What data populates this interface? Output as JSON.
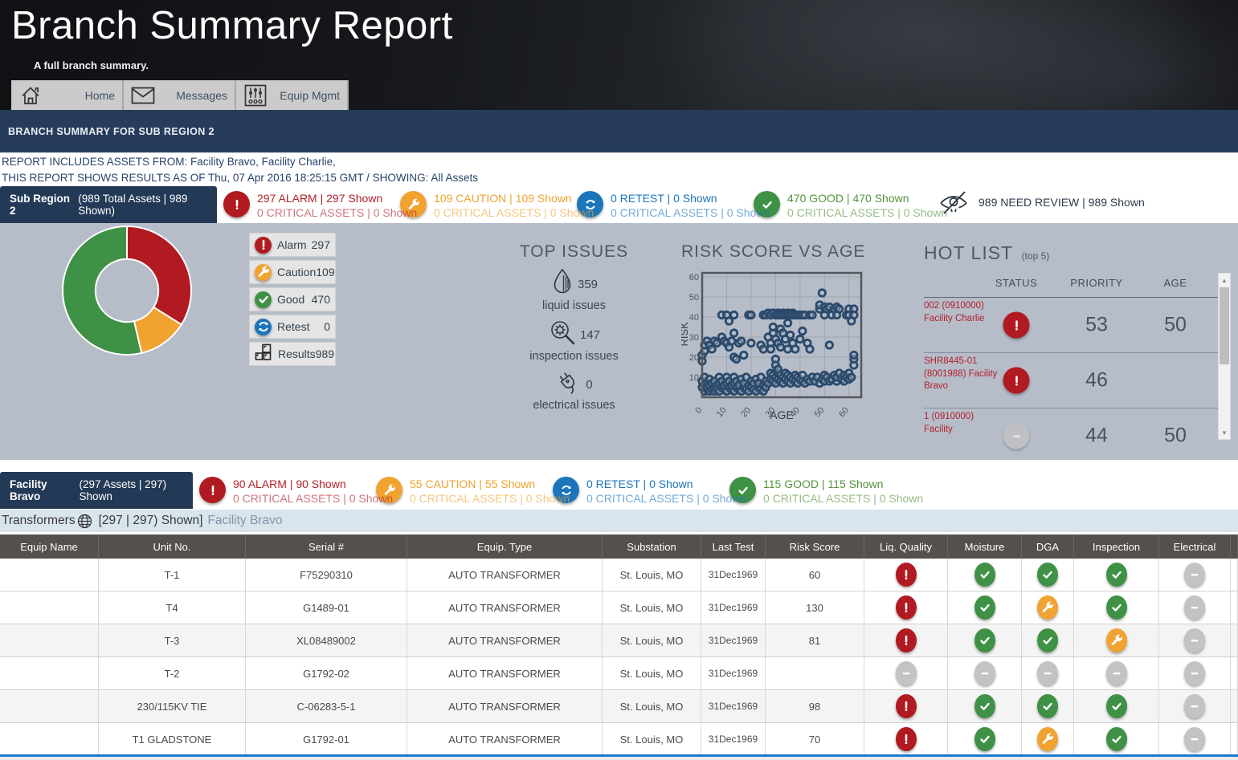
{
  "header": {
    "title": "Branch Summary Report",
    "subtitle": "A full branch summary.",
    "nav": [
      {
        "label": "Home",
        "icon": "home-icon"
      },
      {
        "label": "Messages",
        "icon": "envelope-icon"
      },
      {
        "label": "Equip Mgmt",
        "icon": "sliders-icon"
      }
    ]
  },
  "banner": {
    "text": "BRANCH SUMMARY FOR SUB REGION 2"
  },
  "report_info": {
    "line1": "REPORT INCLUDES ASSETS FROM: Facility Bravo, Facility Charlie,",
    "line2": "THIS REPORT SHOWS RESULTS AS OF Thu, 07 Apr 2016 18:25:15 GMT / SHOWING: All Assets"
  },
  "region_summary": {
    "tab_bold": "Sub Region 2",
    "tab_rest": "(989 Total Assets | 989 Shown)",
    "badges": [
      {
        "type": "alarm",
        "line1": "297 ALARM | 297 Shown",
        "line2": "0 CRITICAL ASSETS | 0 Shown"
      },
      {
        "type": "caution",
        "line1": "109 CAUTION | 109 Shown",
        "line2": "0 CRITICAL ASSETS | 0 Shown"
      },
      {
        "type": "retest",
        "line1": "0 RETEST | 0 Shown",
        "line2": "0 CRITICAL ASSETS | 0 Shown"
      },
      {
        "type": "good",
        "line1": "470 GOOD | 470 Shown",
        "line2": "0 CRITICAL ASSETS | 0 Shown"
      }
    ],
    "need_review": {
      "text": "989 NEED REVIEW | 989 Shown"
    }
  },
  "legend": [
    {
      "type": "alarm",
      "label": "Alarm",
      "value": "297"
    },
    {
      "type": "caution",
      "label": "Caution",
      "value": "109"
    },
    {
      "type": "good",
      "label": "Good",
      "value": "470"
    },
    {
      "type": "retest",
      "label": "Retest",
      "value": "0"
    },
    {
      "type": "results",
      "label": "Results",
      "value": "989"
    }
  ],
  "top_issues": {
    "title": "TOP ISSUES",
    "items": [
      {
        "icon": "droplet-icon",
        "value": "359",
        "label": "liquid issues"
      },
      {
        "icon": "inspection-icon",
        "value": "147",
        "label": "inspection issues"
      },
      {
        "icon": "plug-icon",
        "value": "0",
        "label": "electrical issues"
      }
    ]
  },
  "hot_list": {
    "title": "HOT LIST",
    "subtitle": "(top 5)",
    "columns": [
      "STATUS",
      "PRIORITY",
      "AGE"
    ],
    "rows": [
      {
        "name": "002 (0910000) Facility Charlie",
        "status": "alarm",
        "priority": "53",
        "age": "50"
      },
      {
        "name": "SHR8445-01 (8001988) Facility Bravo",
        "status": "alarm",
        "priority": "46",
        "age": ""
      },
      {
        "name": "1 (0910000) Facility",
        "status": "na",
        "priority": "44",
        "age": "50"
      }
    ]
  },
  "facility_summary": {
    "tab_bold": "Facility Bravo",
    "tab_rest": "(297 Assets | 297) Shown",
    "badges": [
      {
        "type": "alarm",
        "line1": "90 ALARM | 90 Shown",
        "line2": "0 CRITICAL ASSETS | 0 Shown"
      },
      {
        "type": "caution",
        "line1": "55 CAUTION | 55 Shown",
        "line2": "0 CRITICAL ASSETS | 0 Shown"
      },
      {
        "type": "retest",
        "line1": "0 RETEST | 0 Shown",
        "line2": "0 CRITICAL ASSETS | 0 Shown"
      },
      {
        "type": "good",
        "line1": "115 GOOD | 115 Shown",
        "line2": "0 CRITICAL ASSETS | 0 Shown"
      }
    ]
  },
  "table_bar": {
    "title": "Transformers",
    "count": "[297 | 297) Shown]",
    "facility": "Facility Bravo"
  },
  "table": {
    "columns": [
      "Equip Name",
      "Unit No.",
      "Serial #",
      "Equip. Type",
      "Substation",
      "Last Test",
      "Risk Score",
      "Liq. Quality",
      "Moisture",
      "DGA",
      "Inspection",
      "Electrical"
    ],
    "rows": [
      {
        "equip_name": "",
        "unit_no": "T-1",
        "serial": "F75290310",
        "equip_type": "AUTO TRANSFORMER",
        "substation": "St. Louis, MO",
        "last_test": "31Dec1969",
        "risk_score": "60",
        "liq_quality": "alarm",
        "moisture": "good",
        "dga": "good",
        "inspection": "good",
        "electrical": "na"
      },
      {
        "equip_name": "",
        "unit_no": "T4",
        "serial": "G1489-01",
        "equip_type": "AUTO TRANSFORMER",
        "substation": "St. Louis, MO",
        "last_test": "31Dec1969",
        "risk_score": "130",
        "liq_quality": "alarm",
        "moisture": "good",
        "dga": "caution",
        "inspection": "good",
        "electrical": "na"
      },
      {
        "equip_name": "",
        "unit_no": "T-3",
        "serial": "XL08489002",
        "equip_type": "AUTO TRANSFORMER",
        "substation": "St. Louis, MO",
        "last_test": "31Dec1969",
        "risk_score": "81",
        "liq_quality": "alarm",
        "moisture": "good",
        "dga": "good",
        "inspection": "caution",
        "electrical": "na"
      },
      {
        "equip_name": "",
        "unit_no": "T-2",
        "serial": "G1792-02",
        "equip_type": "AUTO TRANSFORMER",
        "substation": "St. Louis, MO",
        "last_test": "31Dec1969",
        "risk_score": "",
        "liq_quality": "na",
        "moisture": "na",
        "dga": "na",
        "inspection": "na",
        "electrical": "na"
      },
      {
        "equip_name": "",
        "unit_no": "230/115KV TIE",
        "serial": "C-06283-5-1",
        "equip_type": "AUTO TRANSFORMER",
        "substation": "St. Louis, MO",
        "last_test": "31Dec1969",
        "risk_score": "98",
        "liq_quality": "alarm",
        "moisture": "good",
        "dga": "good",
        "inspection": "good",
        "electrical": "na"
      },
      {
        "equip_name": "",
        "unit_no": "T1 GLADSTONE",
        "serial": "G1792-01",
        "equip_type": "AUTO TRANSFORMER",
        "substation": "St. Louis, MO",
        "last_test": "31Dec1969",
        "risk_score": "70",
        "liq_quality": "alarm",
        "moisture": "good",
        "dga": "caution",
        "inspection": "good",
        "electrical": "na"
      }
    ]
  },
  "colors": {
    "alarm": "#b11a21",
    "caution": "#f0a330",
    "good": "#3f9145",
    "retest": "#1b75bb",
    "na": "#c3c3c3",
    "navy": "#233a57",
    "panel": "#b6bdc9",
    "point": "#2b4a6c"
  },
  "chart_data": [
    {
      "type": "pie",
      "title": "Asset status donut",
      "labels": [
        "Alarm",
        "Caution",
        "Good",
        "Retest"
      ],
      "values": [
        297,
        109,
        470,
        0
      ],
      "colors": [
        "#b11a21",
        "#f0a330",
        "#3f9145",
        "#1b75bb"
      ],
      "hole": 0.49,
      "start_angle": 0,
      "direction": "clockwise"
    },
    {
      "type": "scatter",
      "title": "RISK SCORE VS AGE",
      "xlabel": "AGE",
      "ylabel": "RISK",
      "xlim": [
        0,
        65
      ],
      "ylim": [
        0,
        62
      ],
      "xticks": [
        0,
        10,
        20,
        30,
        40,
        50,
        60
      ],
      "yticks": [
        10,
        20,
        30,
        40,
        50,
        60
      ],
      "grid": true,
      "points": [
        [
          0,
          5
        ],
        [
          0,
          8
        ],
        [
          1,
          3
        ],
        [
          1,
          6
        ],
        [
          1,
          10
        ],
        [
          2,
          4
        ],
        [
          2,
          7
        ],
        [
          2,
          5
        ],
        [
          3,
          3
        ],
        [
          3,
          6
        ],
        [
          3,
          9
        ],
        [
          4,
          4
        ],
        [
          4,
          7
        ],
        [
          5,
          5
        ],
        [
          5,
          3
        ],
        [
          5,
          8
        ],
        [
          6,
          6
        ],
        [
          6,
          4
        ],
        [
          7,
          7
        ],
        [
          7,
          3
        ],
        [
          7,
          10
        ],
        [
          8,
          5
        ],
        [
          8,
          8
        ],
        [
          9,
          4
        ],
        [
          9,
          6
        ],
        [
          10,
          3
        ],
        [
          10,
          7
        ],
        [
          10,
          10
        ],
        [
          11,
          5
        ],
        [
          11,
          8
        ],
        [
          12,
          4
        ],
        [
          12,
          6
        ],
        [
          13,
          3
        ],
        [
          13,
          7
        ],
        [
          13,
          10
        ],
        [
          14,
          5
        ],
        [
          14,
          8
        ],
        [
          15,
          4
        ],
        [
          15,
          6
        ],
        [
          16,
          3
        ],
        [
          16,
          9
        ],
        [
          17,
          5
        ],
        [
          17,
          7
        ],
        [
          18,
          4
        ],
        [
          18,
          10
        ],
        [
          19,
          6
        ],
        [
          19,
          3
        ],
        [
          20,
          8
        ],
        [
          20,
          5
        ],
        [
          21,
          4
        ],
        [
          21,
          7
        ],
        [
          22,
          3
        ],
        [
          22,
          9
        ],
        [
          23,
          5
        ],
        [
          23,
          7
        ],
        [
          24,
          4
        ],
        [
          24,
          10
        ],
        [
          25,
          6
        ],
        [
          25,
          3
        ],
        [
          26,
          8
        ],
        [
          26,
          5
        ],
        [
          27,
          7
        ],
        [
          28,
          9
        ],
        [
          28,
          12
        ],
        [
          29,
          8
        ],
        [
          29,
          11
        ],
        [
          30,
          7
        ],
        [
          30,
          10
        ],
        [
          31,
          9
        ],
        [
          31,
          12
        ],
        [
          32,
          8
        ],
        [
          32,
          11
        ],
        [
          33,
          7
        ],
        [
          33,
          10
        ],
        [
          34,
          9
        ],
        [
          34,
          12
        ],
        [
          35,
          8
        ],
        [
          35,
          11
        ],
        [
          36,
          7
        ],
        [
          36,
          10
        ],
        [
          37,
          9
        ],
        [
          38,
          8
        ],
        [
          38,
          11
        ],
        [
          39,
          7
        ],
        [
          39,
          10
        ],
        [
          40,
          9
        ],
        [
          41,
          8
        ],
        [
          41,
          11
        ],
        [
          42,
          7
        ],
        [
          43,
          9
        ],
        [
          44,
          8
        ],
        [
          45,
          10
        ],
        [
          46,
          8
        ],
        [
          47,
          10
        ],
        [
          48,
          7
        ],
        [
          49,
          9
        ],
        [
          50,
          8
        ],
        [
          50,
          11
        ],
        [
          51,
          10
        ],
        [
          52,
          8
        ],
        [
          53,
          9
        ],
        [
          54,
          11
        ],
        [
          55,
          8
        ],
        [
          55,
          10
        ],
        [
          56,
          12
        ],
        [
          57,
          9
        ],
        [
          58,
          11
        ],
        [
          58,
          8
        ],
        [
          59,
          10
        ],
        [
          60,
          9
        ],
        [
          60,
          12
        ],
        [
          61,
          10
        ],
        [
          62,
          16
        ],
        [
          62,
          19
        ],
        [
          8,
          41
        ],
        [
          10,
          41
        ],
        [
          11,
          38
        ],
        [
          13,
          41
        ],
        [
          19,
          41
        ],
        [
          20,
          41
        ],
        [
          25,
          41
        ],
        [
          26,
          41
        ],
        [
          27,
          42
        ],
        [
          28,
          41
        ],
        [
          29,
          42
        ],
        [
          30,
          41
        ],
        [
          31,
          42
        ],
        [
          31,
          41
        ],
        [
          32,
          41
        ],
        [
          33,
          42
        ],
        [
          33,
          41
        ],
        [
          34,
          41
        ],
        [
          35,
          42
        ],
        [
          35,
          41
        ],
        [
          36,
          41
        ],
        [
          37,
          42
        ],
        [
          37,
          41
        ],
        [
          38,
          41
        ],
        [
          39,
          41
        ],
        [
          40,
          41
        ],
        [
          41,
          41
        ],
        [
          42,
          41
        ],
        [
          44,
          41
        ],
        [
          45,
          41
        ],
        [
          48,
          44
        ],
        [
          48,
          46
        ],
        [
          49,
          52
        ],
        [
          50,
          45
        ],
        [
          50,
          41
        ],
        [
          51,
          44
        ],
        [
          52,
          45
        ],
        [
          53,
          41
        ],
        [
          54,
          44
        ],
        [
          55,
          45
        ],
        [
          55,
          41
        ],
        [
          56,
          44
        ],
        [
          59,
          41
        ],
        [
          60,
          44
        ],
        [
          60,
          41
        ],
        [
          61,
          38
        ],
        [
          62,
          44
        ],
        [
          62,
          41
        ],
        [
          0,
          18
        ],
        [
          0,
          21
        ],
        [
          1,
          23
        ],
        [
          1,
          26
        ],
        [
          2,
          28
        ],
        [
          3,
          26
        ],
        [
          4,
          24
        ],
        [
          5,
          28
        ],
        [
          6,
          27
        ],
        [
          8,
          30
        ],
        [
          9,
          28
        ],
        [
          10,
          27
        ],
        [
          11,
          25
        ],
        [
          12,
          28
        ],
        [
          13,
          32
        ],
        [
          13,
          20
        ],
        [
          14,
          19
        ],
        [
          15,
          27
        ],
        [
          16,
          28
        ],
        [
          17,
          21
        ],
        [
          20,
          27
        ],
        [
          24,
          26
        ],
        [
          25,
          24
        ],
        [
          27,
          30
        ],
        [
          28,
          27
        ],
        [
          28,
          24
        ],
        [
          29,
          32
        ],
        [
          29,
          35
        ],
        [
          30,
          29
        ],
        [
          30,
          19
        ],
        [
          31,
          27
        ],
        [
          32,
          25
        ],
        [
          32,
          34
        ],
        [
          33,
          32
        ],
        [
          34,
          29
        ],
        [
          35,
          37
        ],
        [
          35,
          24
        ],
        [
          36,
          31
        ],
        [
          37,
          27
        ],
        [
          38,
          24
        ],
        [
          40,
          29
        ],
        [
          41,
          33
        ],
        [
          43,
          27
        ],
        [
          44,
          24
        ],
        [
          52,
          26
        ],
        [
          30,
          16
        ],
        [
          31,
          14
        ],
        [
          62,
          21
        ]
      ]
    }
  ]
}
